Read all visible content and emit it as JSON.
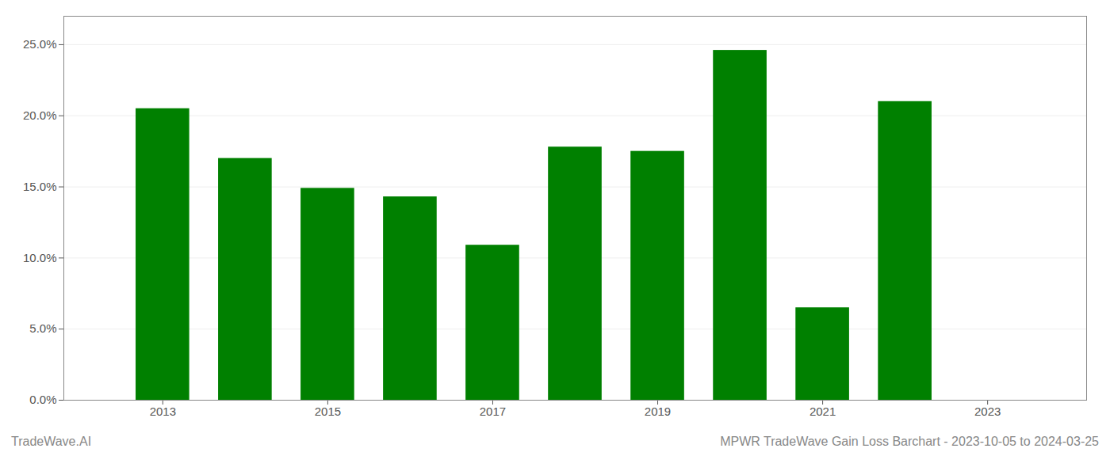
{
  "chart_data": {
    "type": "bar",
    "title": "MPWR TradeWave Gain Loss Barchart - 2023-10-05 to 2024-03-25",
    "annotations": [
      "TradeWave.AI"
    ],
    "x": [
      2013,
      2014,
      2015,
      2016,
      2017,
      2018,
      2019,
      2020,
      2021,
      2022,
      2023
    ],
    "values": [
      0.205,
      0.17,
      0.149,
      0.143,
      0.109,
      0.178,
      0.175,
      0.246,
      0.065,
      0.21,
      null
    ],
    "color": "#008000",
    "xlim": [
      2011.8,
      2024.2
    ],
    "xticks": [
      2013,
      2015,
      2017,
      2019,
      2021,
      2023
    ],
    "ylim": [
      0.0,
      0.27
    ],
    "yticks": [
      {
        "value": 0.0,
        "label": "0.0%"
      },
      {
        "value": 0.05,
        "label": "5.0%"
      },
      {
        "value": 0.1,
        "label": "10.0%"
      },
      {
        "value": 0.15,
        "label": "15.0%"
      },
      {
        "value": 0.2,
        "label": "20.0%"
      },
      {
        "value": 0.25,
        "label": "25.0%"
      }
    ],
    "grid": true
  }
}
